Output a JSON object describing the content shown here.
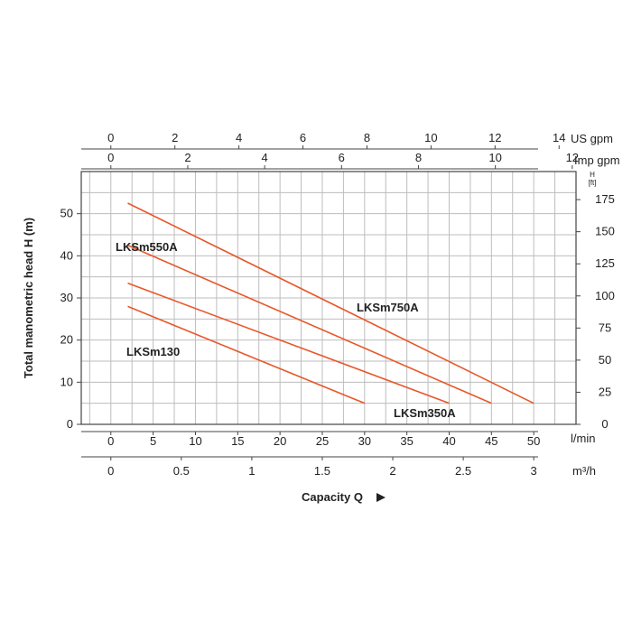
{
  "chart_data": {
    "type": "line",
    "ylabel": "Total manometric head H (m)",
    "ylabel_right": "H",
    "ylabel_right_unit": "[ft]",
    "xlabel": "Capacity Q",
    "x_lmin_unit": "l/min",
    "x_m3h_unit": "m³/h",
    "x_usgpm_unit": "US gpm",
    "x_impgpm_unit": "Imp gpm",
    "xlim": [
      -3.5,
      55
    ],
    "ylim": [
      0,
      60
    ],
    "grid": true,
    "x_lmin_ticks": [
      "0",
      "5",
      "10",
      "15",
      "20",
      "25",
      "30",
      "35",
      "40",
      "45",
      "50"
    ],
    "x_m3h_ticks": [
      "0",
      "0.5",
      "1",
      "1.5",
      "2",
      "2.5",
      "3"
    ],
    "x_usgpm_ticks": [
      "0",
      "2",
      "4",
      "6",
      "8",
      "10",
      "12",
      "14"
    ],
    "x_impgpm_ticks": [
      "0",
      "2",
      "4",
      "6",
      "8",
      "10",
      "12"
    ],
    "y_left_ticks": [
      "0",
      "10",
      "20",
      "30",
      "40",
      "50"
    ],
    "y_right_ticks": [
      "0",
      "25",
      "50",
      "75",
      "100",
      "125",
      "150",
      "175"
    ],
    "series": [
      {
        "name": "LKSm750A",
        "x": [
          2,
          50
        ],
        "y": [
          52.5,
          5
        ]
      },
      {
        "name": "LKSm550A",
        "x": [
          2,
          45
        ],
        "y": [
          42.5,
          5
        ]
      },
      {
        "name": "LKSm350A",
        "x": [
          2,
          40
        ],
        "y": [
          33.5,
          5
        ]
      },
      {
        "name": "LKSm130",
        "x": [
          2,
          30
        ],
        "y": [
          28,
          5
        ]
      }
    ],
    "line_color": "#e8572a"
  }
}
